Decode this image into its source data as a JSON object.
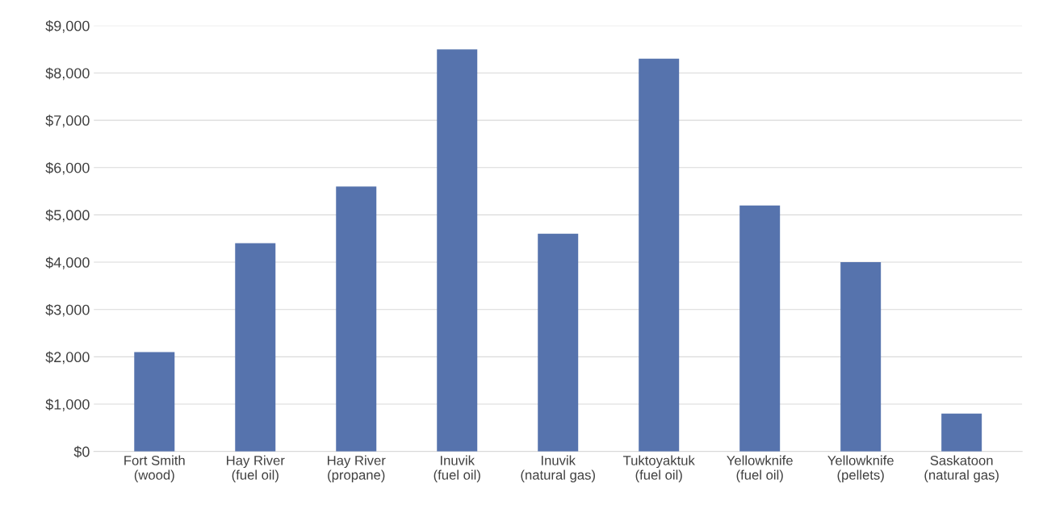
{
  "chart_data": {
    "type": "bar",
    "categories": [
      "Fort Smith\n(wood)",
      "Hay River\n(fuel oil)",
      "Hay River\n(propane)",
      "Inuvik\n(fuel oil)",
      "Inuvik\n(natural gas)",
      "Tuktoyaktuk\n(fuel oil)",
      "Yellowknife\n(fuel oil)",
      "Yellowknife\n(pellets)",
      "Saskatoon\n(natural gas)"
    ],
    "values": [
      2100,
      4400,
      5600,
      8500,
      4600,
      8300,
      5200,
      4000,
      800
    ],
    "color": "#5673ad",
    "ylim": [
      0,
      9000
    ],
    "yticks": [
      {
        "value": 0,
        "label": "$0"
      },
      {
        "value": 1000,
        "label": "$1,000"
      },
      {
        "value": 2000,
        "label": "$2,000"
      },
      {
        "value": 3000,
        "label": "$3,000"
      },
      {
        "value": 4000,
        "label": "$4,000"
      },
      {
        "value": 5000,
        "label": "$5,000"
      },
      {
        "value": 6000,
        "label": "$6,000"
      },
      {
        "value": 7000,
        "label": "$7,000"
      },
      {
        "value": 8000,
        "label": "$8,000"
      },
      {
        "value": 9000,
        "label": "$9,000"
      }
    ],
    "grid": "y"
  }
}
